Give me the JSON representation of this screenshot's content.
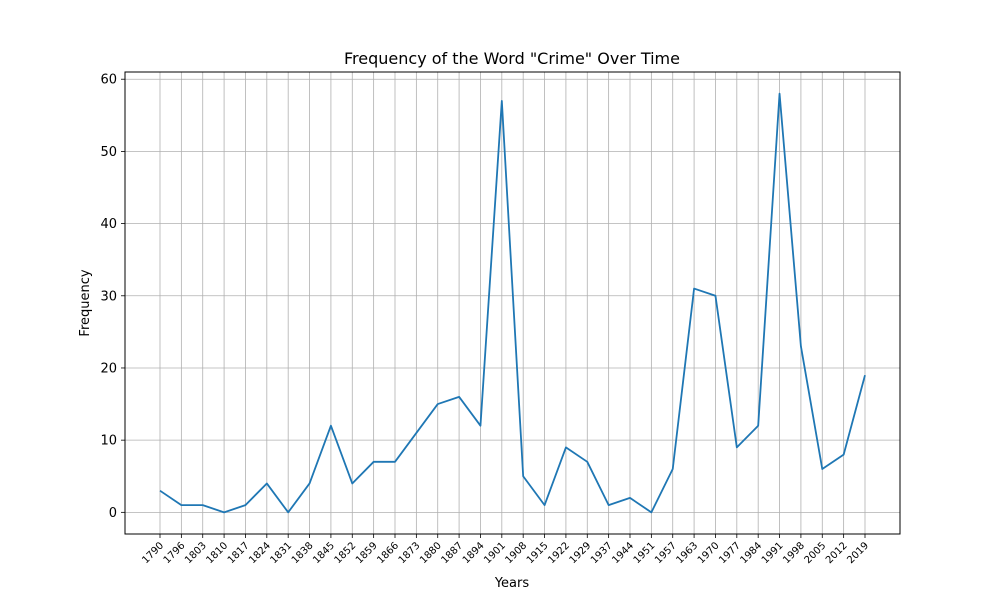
{
  "chart_data": {
    "type": "line",
    "title": "Frequency of the Word \"Crime\" Over Time",
    "xlabel": "Years",
    "ylabel": "Frequency",
    "ylim": [
      -3,
      61
    ],
    "yticks": [
      0,
      10,
      20,
      30,
      40,
      50,
      60
    ],
    "grid": true,
    "line_color": "#1f77b4",
    "x": [
      "1790",
      "1796",
      "1803",
      "1810",
      "1817",
      "1824",
      "1831",
      "1838",
      "1845",
      "1852",
      "1859",
      "1866",
      "1873",
      "1880",
      "1887",
      "1894",
      "1901",
      "1908",
      "1915",
      "1922",
      "1929",
      "1937",
      "1944",
      "1951",
      "1957",
      "1963",
      "1970",
      "1977",
      "1984",
      "1991",
      "1998",
      "2005",
      "2012",
      "2019"
    ],
    "series": [
      {
        "values": [
          3,
          1,
          1,
          0,
          1,
          4,
          0,
          4,
          12,
          4,
          7,
          7,
          11,
          15,
          16,
          12,
          57,
          5,
          1,
          9,
          7,
          1,
          2,
          0,
          6,
          31,
          30,
          9,
          12,
          58,
          23,
          6,
          8,
          19
        ]
      }
    ]
  }
}
